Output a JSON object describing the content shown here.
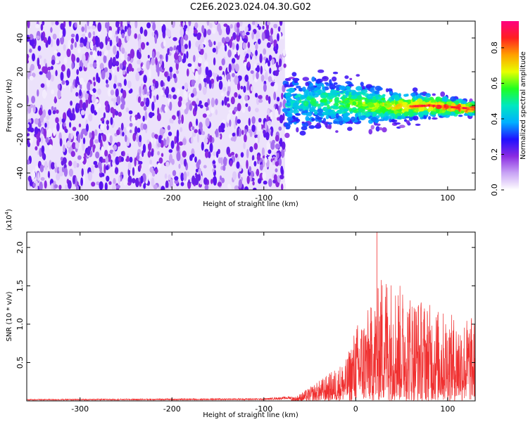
{
  "title": "C2E6.2023.024.04.30.G02",
  "chart_data": [
    {
      "type": "heatmap",
      "xlabel": "Height of straight line (km)",
      "ylabel": "Frequency (Hz)",
      "xlim": [
        -358,
        130
      ],
      "ylim": [
        -50,
        50
      ],
      "x_ticks": [
        -300,
        -200,
        -100,
        0,
        100
      ],
      "y_ticks": [
        -40,
        -20,
        0,
        20,
        40
      ],
      "noise_region_x": [
        -358,
        -77
      ],
      "signal_center_freq_hz": [
        {
          "x": -77,
          "y": 1
        },
        {
          "x": -40,
          "y": 3
        },
        {
          "x": 0,
          "y": 1
        },
        {
          "x": 40,
          "y": -1
        },
        {
          "x": 80,
          "y": 0
        },
        {
          "x": 130,
          "y": -2
        }
      ],
      "colorbar": {
        "label": "Normalized spectral amplitude",
        "range": [
          0.0,
          0.95
        ],
        "ticks": [
          0.0,
          0.2,
          0.4,
          0.6,
          0.8
        ],
        "tick_labels": [
          "0.0",
          "0.2",
          "0.4",
          "0.6",
          "0.8"
        ],
        "colors": [
          "#ffffff",
          "#c9a4f5",
          "#8a2be2",
          "#2010ff",
          "#00b0ff",
          "#00e8c0",
          "#20ff20",
          "#e8ff00",
          "#ffa000",
          "#ff2020",
          "#ff0080"
        ]
      }
    },
    {
      "type": "line",
      "xlabel": "Height of straight line (km)",
      "ylabel": "SNR (10 * v/v)",
      "scale_label": "(x10",
      "scale_exp": "4",
      "scale_close": ")",
      "xlim": [
        -358,
        130
      ],
      "ylim": [
        0,
        2.2
      ],
      "x_ticks": [
        -300,
        -200,
        -100,
        0,
        100
      ],
      "y_ticks": [
        0.5,
        1.0,
        1.5,
        2.0
      ],
      "color": "#f03030",
      "envelope": [
        {
          "x": -358,
          "y": 0.02
        },
        {
          "x": -100,
          "y": 0.03
        },
        {
          "x": -65,
          "y": 0.06
        },
        {
          "x": -50,
          "y": 0.18
        },
        {
          "x": -30,
          "y": 0.35
        },
        {
          "x": -10,
          "y": 0.55
        },
        {
          "x": 0,
          "y": 1.0
        },
        {
          "x": 20,
          "y": 1.3
        },
        {
          "x": 30,
          "y": 1.75
        },
        {
          "x": 50,
          "y": 1.5
        },
        {
          "x": 70,
          "y": 1.35
        },
        {
          "x": 90,
          "y": 1.2
        },
        {
          "x": 110,
          "y": 1.1
        },
        {
          "x": 130,
          "y": 1.1
        }
      ],
      "peak": {
        "x": 23,
        "y": 2.2
      }
    }
  ]
}
